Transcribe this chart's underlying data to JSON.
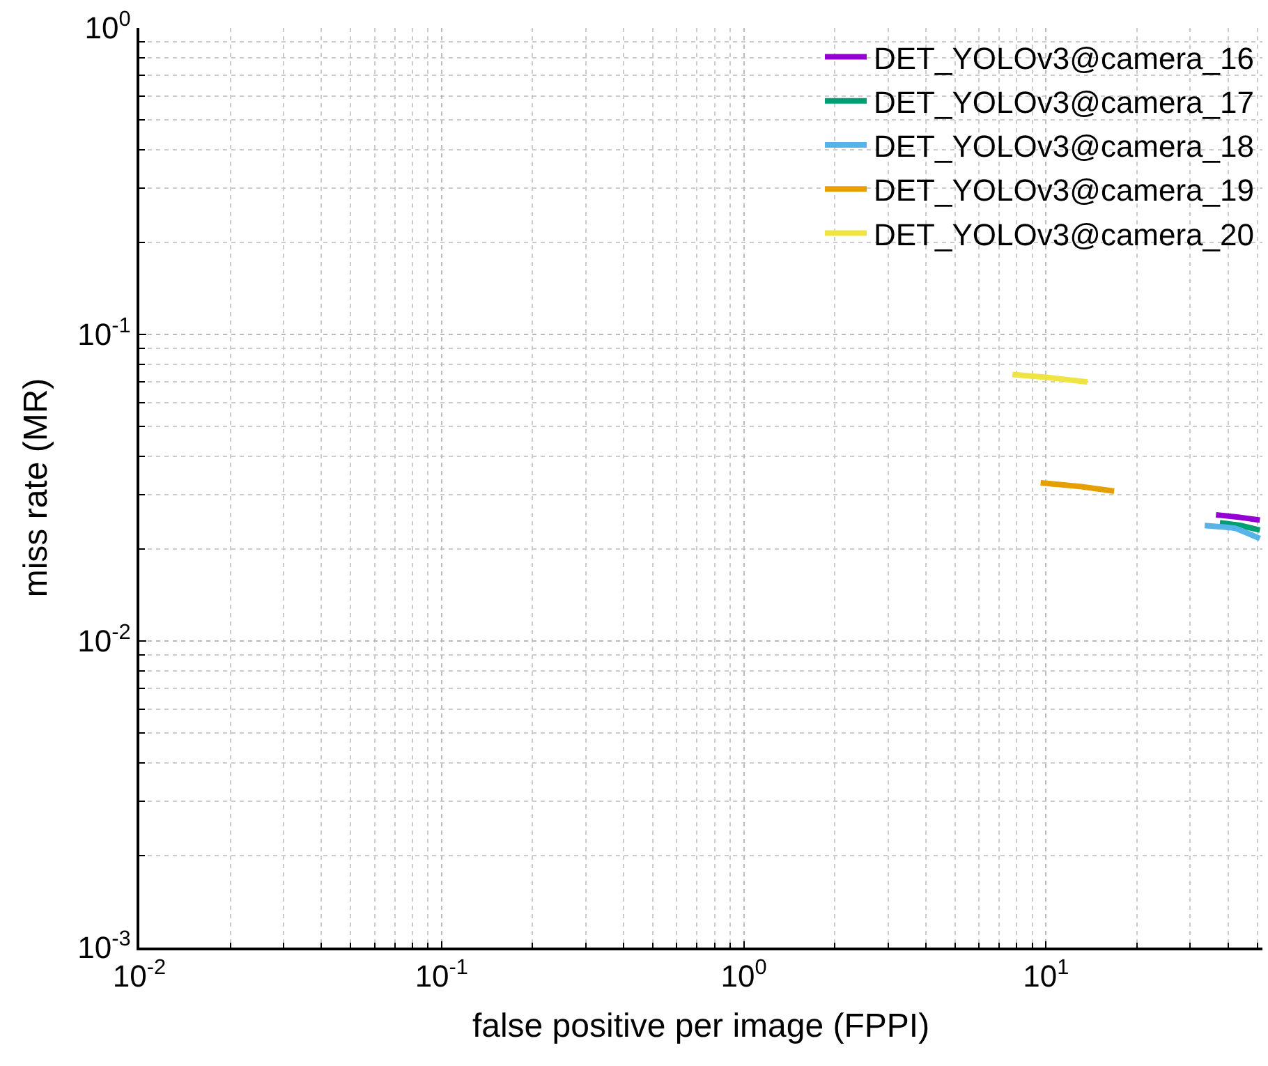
{
  "chart_data": {
    "type": "line",
    "xlabel": "false positive per image (FPPI)",
    "ylabel": "miss rate (MR)",
    "log": "xy",
    "grid": true,
    "legend": "top right",
    "marker": "none",
    "line_style": "solid",
    "xlim": [
      0.01,
      52
    ],
    "xticks": [
      {
        "value": 0.01,
        "label": "10$^{-2}$"
      },
      {
        "value": 0.1,
        "label": "10$^{-1}$"
      },
      {
        "value": 1,
        "label": "10$^{0}$"
      },
      {
        "value": 10,
        "label": "10$^{1}$"
      }
    ],
    "ylim": [
      0.001,
      1
    ],
    "yticks": [
      {
        "value": 0.001,
        "label": "10$^{-3}$"
      },
      {
        "value": 0.01,
        "label": "10$^{-2}$"
      },
      {
        "value": 0.1,
        "label": "10$^{-1}$"
      },
      {
        "value": 1,
        "label": "10$^{0}$"
      }
    ],
    "series": [
      {
        "name": "DET_YOLOv3@camera_16",
        "color": "#9400d3",
        "x": [
          36.5,
          44,
          51
        ],
        "values": [
          0.0258,
          0.0253,
          0.0248
        ]
      },
      {
        "name": "DET_YOLOv3@camera_17",
        "color": "#009e73",
        "x": [
          37.6,
          44,
          51
        ],
        "values": [
          0.0243,
          0.0238,
          0.023
        ]
      },
      {
        "name": "DET_YOLOv3@camera_18",
        "color": "#56b4e9",
        "x": [
          33.5,
          42.3,
          51
        ],
        "values": [
          0.0238,
          0.0233,
          0.0216
        ]
      },
      {
        "name": "DET_YOLOv3@camera_19",
        "color": "#e69f00",
        "x": [
          9.6,
          13,
          16.8
        ],
        "values": [
          0.0328,
          0.0319,
          0.0308
        ]
      },
      {
        "name": "DET_YOLOv3@camera_20",
        "color": "#f0e442",
        "x": [
          7.74,
          10,
          13.7
        ],
        "values": [
          0.074,
          0.0725,
          0.07
        ]
      }
    ]
  }
}
